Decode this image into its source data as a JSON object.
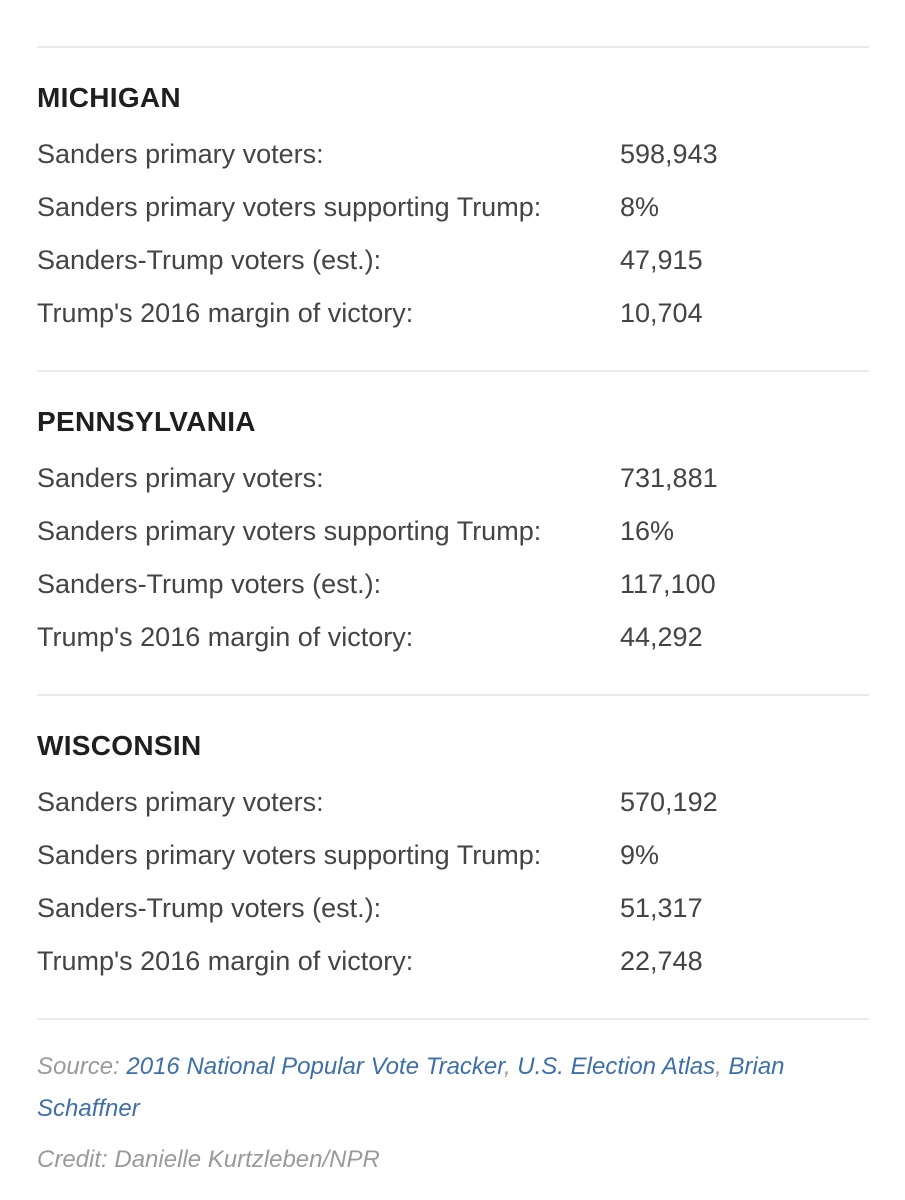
{
  "states": [
    {
      "name": "MICHIGAN",
      "rows": [
        {
          "label": "Sanders primary voters:",
          "value": "598,943"
        },
        {
          "label": "Sanders primary voters supporting Trump:",
          "value": "8%"
        },
        {
          "label": "Sanders-Trump voters (est.):",
          "value": "47,915"
        },
        {
          "label": "Trump's 2016 margin of victory:",
          "value": "10,704"
        }
      ]
    },
    {
      "name": "PENNSYLVANIA",
      "rows": [
        {
          "label": "Sanders primary voters:",
          "value": "731,881"
        },
        {
          "label": "Sanders primary voters supporting Trump:",
          "value": "16%"
        },
        {
          "label": "Sanders-Trump voters (est.):",
          "value": "117,100"
        },
        {
          "label": "Trump's 2016 margin of victory:",
          "value": "44,292"
        }
      ]
    },
    {
      "name": "WISCONSIN",
      "rows": [
        {
          "label": "Sanders primary voters:",
          "value": "570,192"
        },
        {
          "label": "Sanders primary voters supporting Trump:",
          "value": "9%"
        },
        {
          "label": "Sanders-Trump voters (est.):",
          "value": "51,317"
        },
        {
          "label": "Trump's 2016 margin of victory:",
          "value": "22,748"
        }
      ]
    }
  ],
  "footer": {
    "source_prefix": "Source: ",
    "source_links": [
      {
        "text": "2016 National Popular Vote Tracker"
      },
      {
        "text": "U.S. Election Atlas"
      },
      {
        "text": "Brian Schaffner"
      }
    ],
    "separator": ", ",
    "credit": "Credit: Danielle Kurtzleben/NPR"
  },
  "colors": {
    "link": "#3d6fa8",
    "muted": "#9a9a9a",
    "divider": "#e9e9e9"
  }
}
